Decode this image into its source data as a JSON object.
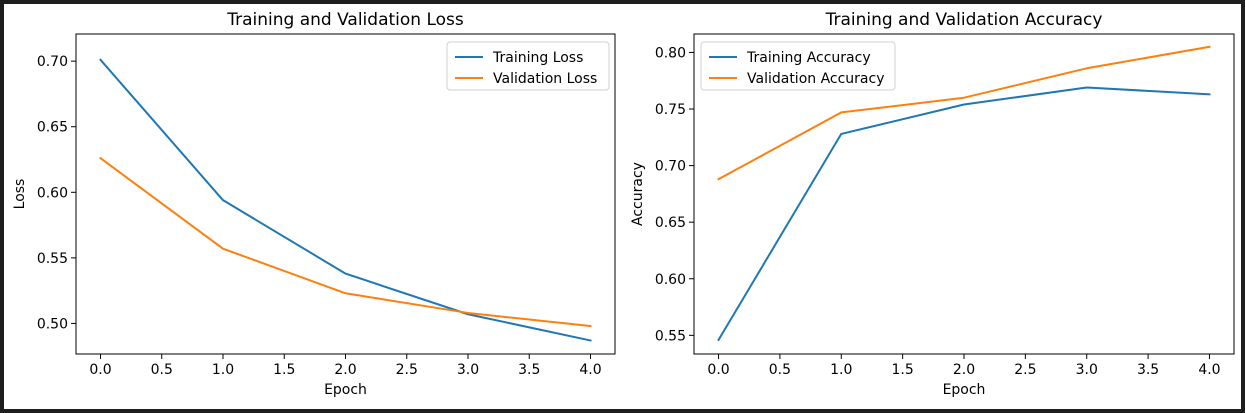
{
  "chart_data": [
    {
      "type": "line",
      "title": "Training and Validation Loss",
      "xlabel": "Epoch",
      "ylabel": "Loss",
      "x": [
        0,
        1,
        2,
        3,
        4
      ],
      "xlim": [
        -0.2,
        4.2
      ],
      "ylim": [
        0.4767,
        0.7207
      ],
      "xticks": [
        0.0,
        0.5,
        1.0,
        1.5,
        2.0,
        2.5,
        3.0,
        3.5,
        4.0
      ],
      "xtick_labels": [
        "0.0",
        "0.5",
        "1.0",
        "1.5",
        "2.0",
        "2.5",
        "3.0",
        "3.5",
        "4.0"
      ],
      "yticks": [
        0.5,
        0.55,
        0.6,
        0.65,
        0.7
      ],
      "ytick_labels": [
        "0.50",
        "0.55",
        "0.60",
        "0.65",
        "0.70"
      ],
      "grid": false,
      "legend": "top-right",
      "series": [
        {
          "name": "Training Loss",
          "color": "#1f77b4",
          "values": [
            0.701,
            0.594,
            0.538,
            0.507,
            0.487
          ]
        },
        {
          "name": "Validation Loss",
          "color": "#ff7f0e",
          "values": [
            0.626,
            0.557,
            0.523,
            0.508,
            0.498
          ]
        }
      ]
    },
    {
      "type": "line",
      "title": "Training and Validation Accuracy",
      "xlabel": "Epoch",
      "ylabel": "Accuracy",
      "x": [
        0,
        1,
        2,
        3,
        4
      ],
      "xlim": [
        -0.2,
        4.2
      ],
      "ylim": [
        0.5335,
        0.8163
      ],
      "xticks": [
        0.0,
        0.5,
        1.0,
        1.5,
        2.0,
        2.5,
        3.0,
        3.5,
        4.0
      ],
      "xtick_labels": [
        "0.0",
        "0.5",
        "1.0",
        "1.5",
        "2.0",
        "2.5",
        "3.0",
        "3.5",
        "4.0"
      ],
      "yticks": [
        0.55,
        0.6,
        0.65,
        0.7,
        0.75,
        0.8
      ],
      "ytick_labels": [
        "0.55",
        "0.60",
        "0.65",
        "0.70",
        "0.75",
        "0.80"
      ],
      "grid": false,
      "legend": "top-left",
      "series": [
        {
          "name": "Training Accuracy",
          "color": "#1f77b4",
          "values": [
            0.546,
            0.728,
            0.754,
            0.769,
            0.763
          ]
        },
        {
          "name": "Validation Accuracy",
          "color": "#ff7f0e",
          "values": [
            0.688,
            0.747,
            0.76,
            0.786,
            0.805
          ]
        }
      ]
    }
  ]
}
